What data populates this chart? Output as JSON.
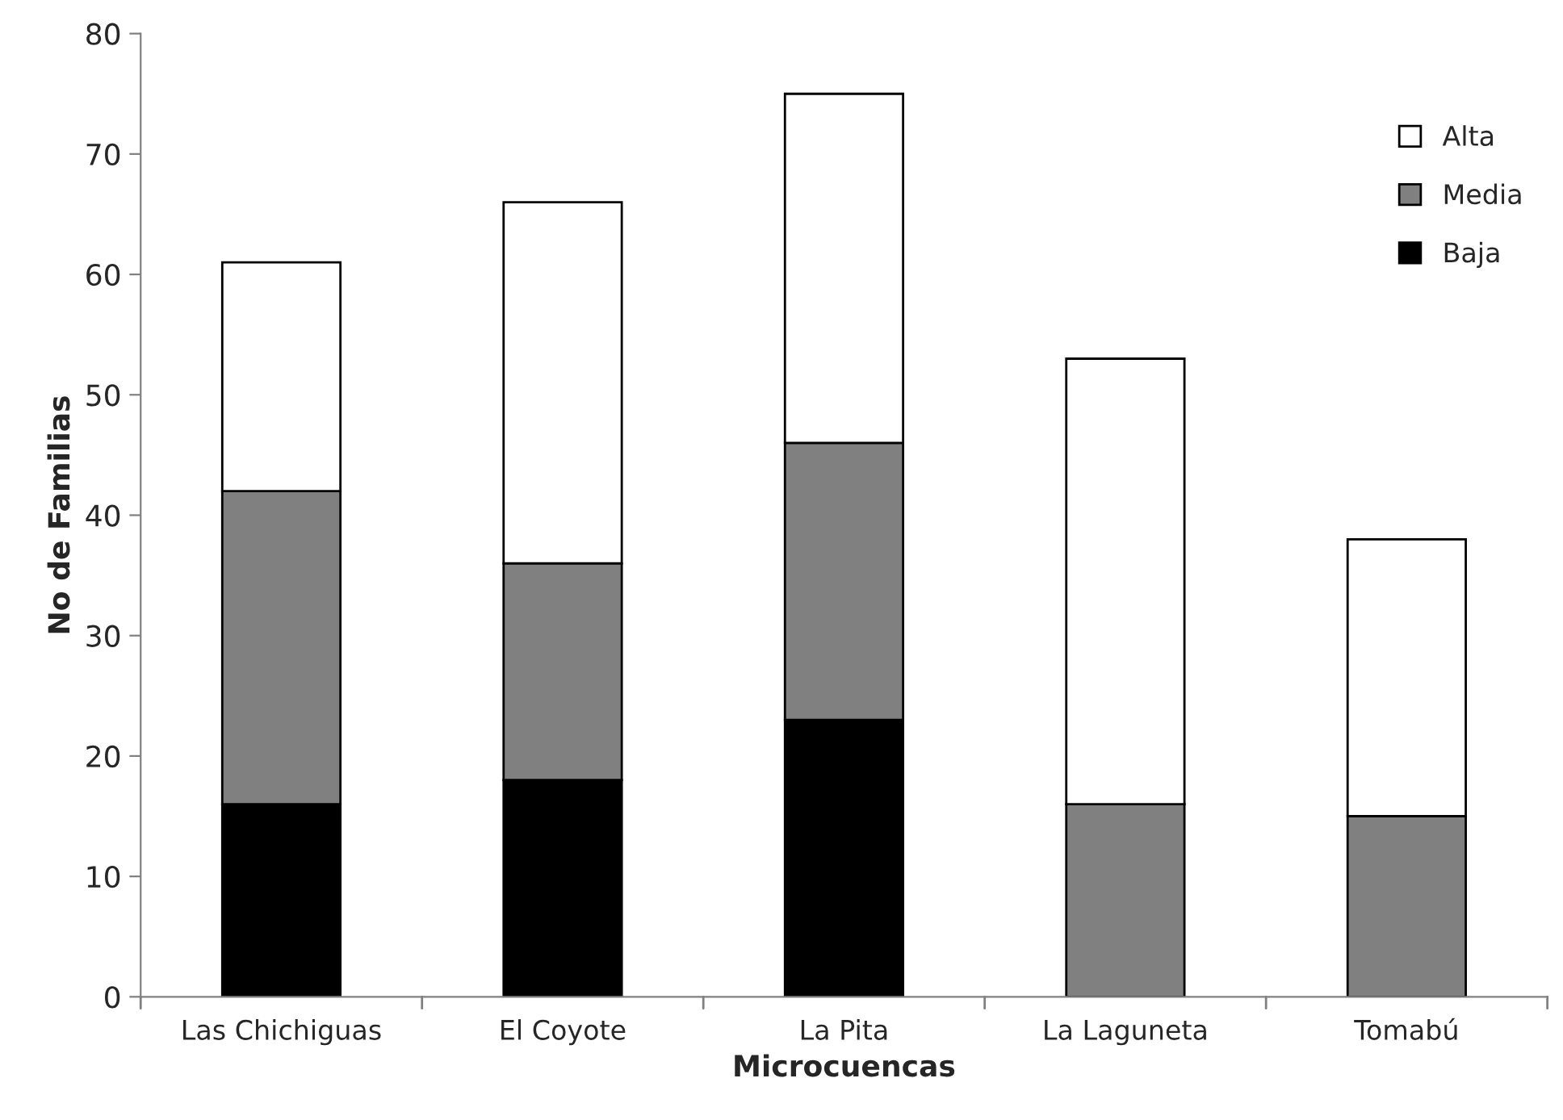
{
  "chart_data": {
    "type": "bar",
    "stacked": true,
    "xlabel": "Microcuencas",
    "ylabel": "No de Familias",
    "categories": [
      "Las Chichiguas",
      "El Coyote",
      "La Pita",
      "La Laguneta",
      "Tomabú"
    ],
    "series": [
      {
        "name": "Baja",
        "color": "#000000",
        "values": [
          16,
          18,
          23,
          0,
          0
        ]
      },
      {
        "name": "Media",
        "color": "#808080",
        "values": [
          26,
          18,
          23,
          16,
          15
        ]
      },
      {
        "name": "Alta",
        "color": "#ffffff",
        "values": [
          19,
          30,
          29,
          37,
          23
        ]
      }
    ],
    "ylim": [
      0,
      80
    ],
    "yticks": [
      0,
      10,
      20,
      30,
      40,
      50,
      60,
      70,
      80
    ],
    "grid": false,
    "legend": "top right"
  }
}
